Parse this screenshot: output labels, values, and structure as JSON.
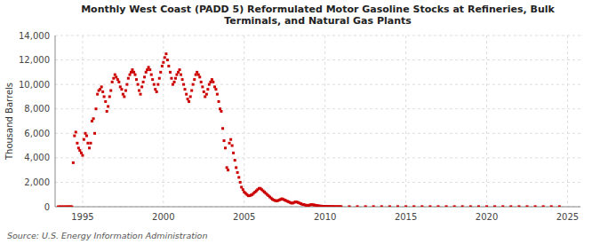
{
  "chart_data": {
    "type": "scatter",
    "title": "Monthly West Coast (PADD 5) Reformulated Motor Gasoline Stocks at Refineries, Bulk\nTerminals, and Natural Gas Plants",
    "y_label": "Thousand Barrels",
    "annotations": [
      "Source: U.S. Energy Information Administration"
    ],
    "color": "#cc0000",
    "marker": "square",
    "grid": true,
    "xlim": [
      1993.3,
      2025.8
    ],
    "ylim": [
      0,
      14000
    ],
    "xticks": [
      1995,
      2000,
      2005,
      2010,
      2015,
      2020,
      2025
    ],
    "yticks": [
      0,
      {
        "value": 2000,
        "label": "2,000"
      },
      {
        "value": 4000,
        "label": "4,000"
      },
      {
        "value": 6000,
        "label": "6,000"
      },
      {
        "value": 8000,
        "label": "8,000"
      },
      {
        "value": 10000,
        "label": "10,000"
      },
      {
        "value": 12000,
        "label": "12,000"
      },
      {
        "value": 14000,
        "label": "14,000"
      }
    ],
    "x": [
      1993.5,
      1993.6,
      1993.7,
      1993.8,
      1993.9,
      1994.0,
      1994.08,
      1994.17,
      1994.25,
      1994.33,
      1994.42,
      1994.5,
      1994.58,
      1994.67,
      1994.75,
      1994.83,
      1994.92,
      1995.0,
      1995.08,
      1995.17,
      1995.25,
      1995.33,
      1995.42,
      1995.5,
      1995.58,
      1995.67,
      1995.75,
      1995.83,
      1995.92,
      1996.0,
      1996.08,
      1996.17,
      1996.25,
      1996.33,
      1996.42,
      1996.5,
      1996.58,
      1996.67,
      1996.75,
      1996.83,
      1996.92,
      1997.0,
      1997.08,
      1997.17,
      1997.25,
      1997.33,
      1997.42,
      1997.5,
      1997.58,
      1997.67,
      1997.75,
      1997.83,
      1997.92,
      1998.0,
      1998.08,
      1998.17,
      1998.25,
      1998.33,
      1998.42,
      1998.5,
      1998.58,
      1998.67,
      1998.75,
      1998.83,
      1998.92,
      1999.0,
      1999.08,
      1999.17,
      1999.25,
      1999.33,
      1999.42,
      1999.5,
      1999.58,
      1999.67,
      1999.75,
      1999.83,
      1999.92,
      2000.0,
      2000.08,
      2000.17,
      2000.25,
      2000.33,
      2000.42,
      2000.5,
      2000.58,
      2000.67,
      2000.75,
      2000.83,
      2000.92,
      2001.0,
      2001.08,
      2001.17,
      2001.25,
      2001.33,
      2001.42,
      2001.5,
      2001.58,
      2001.67,
      2001.75,
      2001.83,
      2001.92,
      2002.0,
      2002.08,
      2002.17,
      2002.25,
      2002.33,
      2002.42,
      2002.5,
      2002.58,
      2002.67,
      2002.75,
      2002.83,
      2002.92,
      2003.0,
      2003.08,
      2003.17,
      2003.25,
      2003.33,
      2003.42,
      2003.5,
      2003.58,
      2003.67,
      2003.75,
      2003.83,
      2003.92,
      2004.0,
      2004.08,
      2004.17,
      2004.25,
      2004.33,
      2004.42,
      2004.5,
      2004.58,
      2004.67,
      2004.75,
      2004.83,
      2004.92,
      2005.0,
      2005.08,
      2005.17,
      2005.25,
      2005.33,
      2005.42,
      2005.5,
      2005.58,
      2005.67,
      2005.75,
      2005.83,
      2005.92,
      2006.0,
      2006.08,
      2006.17,
      2006.25,
      2006.33,
      2006.42,
      2006.5,
      2006.58,
      2006.67,
      2006.75,
      2006.83,
      2006.92,
      2007.0,
      2007.08,
      2007.17,
      2007.25,
      2007.33,
      2007.42,
      2007.5,
      2007.58,
      2007.67,
      2007.75,
      2007.83,
      2007.92,
      2008.0,
      2008.08,
      2008.17,
      2008.25,
      2008.33,
      2008.42,
      2008.5,
      2008.58,
      2008.67,
      2008.75,
      2008.83,
      2008.92,
      2009.0,
      2009.08,
      2009.17,
      2009.25,
      2009.33,
      2009.42,
      2009.5,
      2009.58,
      2009.67,
      2009.75,
      2009.83,
      2009.92,
      2010.0,
      2010.08,
      2010.17,
      2010.25,
      2010.33,
      2010.42,
      2010.5,
      2010.58,
      2010.67,
      2010.75,
      2010.83,
      2010.92,
      2011.0,
      2011.5,
      2012.0,
      2012.5,
      2013.0,
      2013.5,
      2014.0,
      2014.5,
      2015.0,
      2015.5,
      2016.0,
      2016.5,
      2017.0,
      2017.5,
      2018.0,
      2018.5,
      2019.0,
      2019.5,
      2020.0,
      2020.5,
      2021.0,
      2021.5,
      2022.0,
      2022.5,
      2023.0,
      2023.5,
      2024.0,
      2024.5
    ],
    "values": [
      0,
      0,
      0,
      0,
      0,
      0,
      0,
      0,
      0,
      0,
      3600,
      5800,
      6100,
      5200,
      4800,
      4600,
      4400,
      4200,
      5500,
      6000,
      5800,
      5200,
      4800,
      5200,
      7000,
      7200,
      6000,
      8000,
      9200,
      9500,
      9600,
      9800,
      9400,
      9000,
      8600,
      7800,
      8200,
      9000,
      9500,
      10200,
      10500,
      10800,
      10600,
      10400,
      10200,
      9800,
      9600,
      9200,
      9000,
      9500,
      10000,
      10500,
      10800,
      11000,
      11200,
      11000,
      10800,
      10400,
      10000,
      9500,
      9200,
      9800,
      10200,
      10600,
      11000,
      11200,
      11400,
      11200,
      10800,
      10400,
      10000,
      9600,
      9400,
      10000,
      10500,
      11000,
      11500,
      11800,
      12200,
      12500,
      12000,
      11500,
      11000,
      10500,
      10000,
      10200,
      10500,
      10800,
      11000,
      11200,
      10800,
      10400,
      10000,
      9600,
      9200,
      8800,
      8600,
      9000,
      9500,
      10000,
      10400,
      10800,
      11000,
      10800,
      10600,
      10200,
      9800,
      9400,
      9000,
      9200,
      9600,
      10000,
      10200,
      10400,
      10200,
      9800,
      9600,
      9200,
      8600,
      8000,
      7800,
      6400,
      5400,
      4800,
      3200,
      3000,
      5200,
      5500,
      5000,
      4400,
      3800,
      3200,
      2800,
      2400,
      2000,
      1600,
      1400,
      1200,
      1100,
      1000,
      900,
      900,
      950,
      1000,
      1100,
      1200,
      1300,
      1400,
      1500,
      1500,
      1400,
      1300,
      1200,
      1100,
      1000,
      900,
      800,
      700,
      600,
      550,
      500,
      480,
      500,
      550,
      600,
      650,
      600,
      550,
      500,
      450,
      400,
      350,
      300,
      300,
      350,
      400,
      380,
      350,
      300,
      250,
      200,
      180,
      150,
      120,
      100,
      120,
      150,
      180,
      160,
      140,
      120,
      100,
      80,
      60,
      50,
      40,
      30,
      30,
      30,
      25,
      20,
      20,
      15,
      15,
      15,
      10,
      10,
      10,
      10,
      10,
      10,
      10,
      10,
      10,
      10,
      10,
      10,
      10,
      10,
      10,
      10,
      10,
      10,
      10,
      10,
      10,
      10,
      10,
      10,
      10,
      10,
      10,
      10,
      10,
      10,
      10,
      10
    ]
  }
}
